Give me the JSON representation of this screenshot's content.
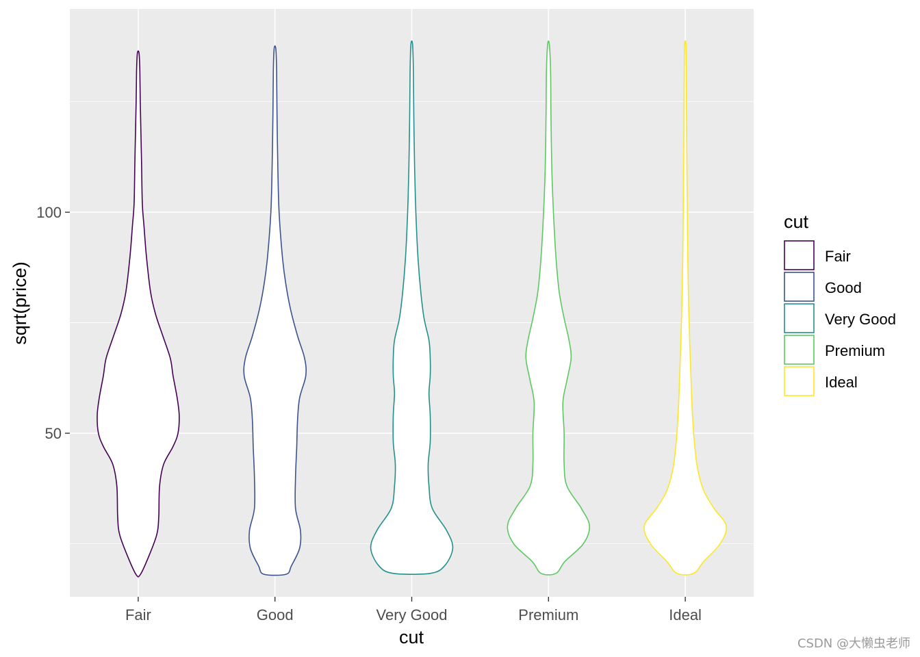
{
  "chart_data": {
    "type": "violin",
    "xlabel": "cut",
    "ylabel": "sqrt(price)",
    "categories": [
      "Fair",
      "Good",
      "Very Good",
      "Premium",
      "Ideal"
    ],
    "ylim": [
      13,
      146
    ],
    "yticks": [
      50,
      100
    ],
    "ytick_labels": [
      "50",
      "100"
    ],
    "grid": true,
    "legend": {
      "title": "cut",
      "position": "right"
    },
    "colors": [
      "#440154",
      "#3B528B",
      "#21908C",
      "#5DC863",
      "#FDE725"
    ],
    "series": [
      {
        "name": "Fair",
        "ymin": 18.0,
        "ymax": 136.0,
        "profile": [
          [
            18.0,
            0.05
          ],
          [
            22,
            0.25
          ],
          [
            27,
            0.45
          ],
          [
            31,
            0.5
          ],
          [
            38,
            0.52
          ],
          [
            43,
            0.62
          ],
          [
            47,
            0.85
          ],
          [
            50,
            0.97
          ],
          [
            54,
            1.0
          ],
          [
            58,
            0.95
          ],
          [
            63,
            0.85
          ],
          [
            67,
            0.78
          ],
          [
            72,
            0.6
          ],
          [
            77,
            0.42
          ],
          [
            82,
            0.3
          ],
          [
            90,
            0.2
          ],
          [
            97,
            0.14
          ],
          [
            102,
            0.1
          ],
          [
            112,
            0.08
          ],
          [
            125,
            0.05
          ],
          [
            132,
            0.04
          ],
          [
            136.0,
            0.02
          ]
        ]
      },
      {
        "name": "Good",
        "ymin": 18.1,
        "ymax": 137.0,
        "profile": [
          [
            18.1,
            0.27
          ],
          [
            20,
            0.4
          ],
          [
            24,
            0.6
          ],
          [
            28,
            0.62
          ],
          [
            33,
            0.5
          ],
          [
            40,
            0.5
          ],
          [
            47,
            0.53
          ],
          [
            53,
            0.55
          ],
          [
            58,
            0.6
          ],
          [
            63,
            0.75
          ],
          [
            67,
            0.72
          ],
          [
            72,
            0.55
          ],
          [
            78,
            0.38
          ],
          [
            84,
            0.26
          ],
          [
            90,
            0.18
          ],
          [
            100,
            0.1
          ],
          [
            110,
            0.07
          ],
          [
            122,
            0.05
          ],
          [
            132,
            0.04
          ],
          [
            137.0,
            0.02
          ]
        ]
      },
      {
        "name": "Very Good",
        "ymin": 18.3,
        "ymax": 138.0,
        "profile": [
          [
            18.3,
            0.45
          ],
          [
            20,
            0.8
          ],
          [
            24,
            1.0
          ],
          [
            28,
            0.85
          ],
          [
            33,
            0.5
          ],
          [
            38,
            0.42
          ],
          [
            43,
            0.4
          ],
          [
            48,
            0.45
          ],
          [
            54,
            0.45
          ],
          [
            59,
            0.42
          ],
          [
            63,
            0.45
          ],
          [
            67,
            0.45
          ],
          [
            71,
            0.42
          ],
          [
            76,
            0.3
          ],
          [
            82,
            0.22
          ],
          [
            90,
            0.15
          ],
          [
            100,
            0.1
          ],
          [
            110,
            0.07
          ],
          [
            122,
            0.05
          ],
          [
            132,
            0.04
          ],
          [
            138.0,
            0.02
          ]
        ]
      },
      {
        "name": "Premium",
        "ymin": 18.3,
        "ymax": 138.0,
        "profile": [
          [
            18.3,
            0.18
          ],
          [
            21,
            0.4
          ],
          [
            25,
            0.85
          ],
          [
            29,
            1.0
          ],
          [
            33,
            0.8
          ],
          [
            38,
            0.45
          ],
          [
            43,
            0.38
          ],
          [
            50,
            0.38
          ],
          [
            57,
            0.35
          ],
          [
            62,
            0.45
          ],
          [
            67,
            0.55
          ],
          [
            71,
            0.5
          ],
          [
            76,
            0.38
          ],
          [
            82,
            0.26
          ],
          [
            90,
            0.18
          ],
          [
            100,
            0.12
          ],
          [
            110,
            0.08
          ],
          [
            122,
            0.06
          ],
          [
            132,
            0.05
          ],
          [
            138.0,
            0.02
          ]
        ]
      },
      {
        "name": "Ideal",
        "ymin": 18.3,
        "ymax": 138.0,
        "profile": [
          [
            18.3,
            0.2
          ],
          [
            21,
            0.45
          ],
          [
            25,
            0.85
          ],
          [
            29,
            1.0
          ],
          [
            33,
            0.7
          ],
          [
            37,
            0.45
          ],
          [
            42,
            0.3
          ],
          [
            48,
            0.22
          ],
          [
            55,
            0.17
          ],
          [
            62,
            0.14
          ],
          [
            70,
            0.11
          ],
          [
            80,
            0.08
          ],
          [
            90,
            0.06
          ],
          [
            100,
            0.05
          ],
          [
            110,
            0.04
          ],
          [
            122,
            0.03
          ],
          [
            132,
            0.025
          ],
          [
            138.0,
            0.015
          ]
        ]
      }
    ]
  },
  "watermark": "CSDN @大懒虫老师"
}
